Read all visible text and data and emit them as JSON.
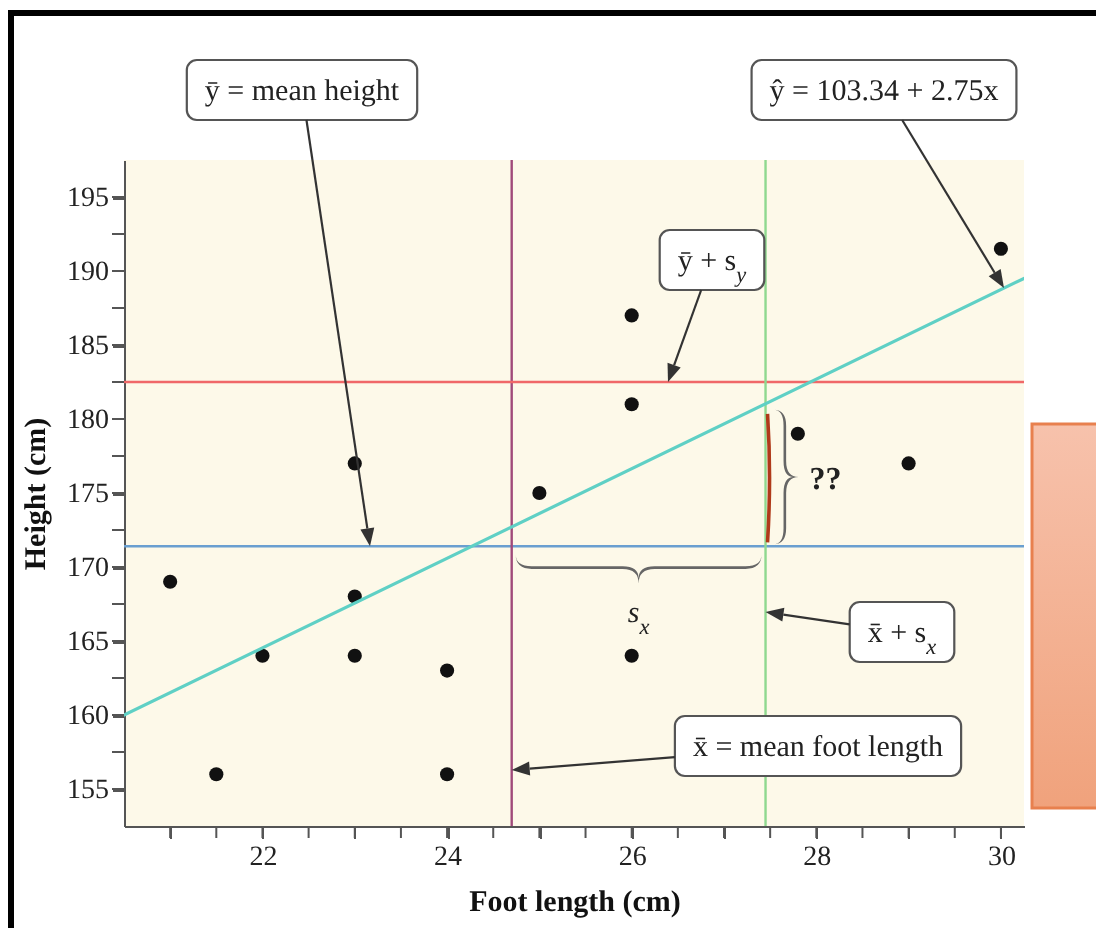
{
  "chart_data": {
    "type": "scatter",
    "xlabel": "Foot length (cm)",
    "ylabel": "Height (cm)",
    "xlim": [
      20.5,
      30.25
    ],
    "ylim": [
      152.5,
      197.5
    ],
    "xticks": [
      {
        "value": 21,
        "label": null
      },
      {
        "value": 21.5,
        "label": null
      },
      22,
      {
        "value": 22.5,
        "label": null
      },
      {
        "value": 23,
        "label": null
      },
      {
        "value": 23.5,
        "label": null
      },
      24,
      {
        "value": 24.5,
        "label": null
      },
      {
        "value": 25,
        "label": null
      },
      {
        "value": 25.5,
        "label": null
      },
      26,
      {
        "value": 26.5,
        "label": null
      },
      {
        "value": 27,
        "label": null
      },
      {
        "value": 27.5,
        "label": null
      },
      28,
      {
        "value": 28.5,
        "label": null
      },
      {
        "value": 29,
        "label": null
      },
      {
        "value": 29.5,
        "label": null
      },
      30
    ],
    "yticks": [
      155,
      {
        "value": 157.5,
        "label": null
      },
      160,
      {
        "value": 162.5,
        "label": null
      },
      165,
      {
        "value": 167.5,
        "label": null
      },
      170,
      {
        "value": 172.5,
        "label": null
      },
      175,
      {
        "value": 177.5,
        "label": null
      },
      180,
      {
        "value": 182.5,
        "label": null
      },
      185,
      {
        "value": 187.5,
        "label": null
      },
      190,
      {
        "value": 192.5,
        "label": null
      },
      195
    ],
    "series": [
      {
        "marker": "circle",
        "x": [
          21,
          21.5,
          22,
          23,
          23,
          23,
          24,
          24,
          25,
          26,
          26,
          26,
          27.8,
          29,
          30
        ],
        "values": [
          169,
          156,
          164,
          177,
          168,
          164,
          163,
          156,
          175,
          187,
          181,
          164,
          179,
          177,
          191.5
        ],
        "color": "#111111"
      },
      {
        "type": "line",
        "x": [
          20.5,
          30.25
        ],
        "values": [
          160,
          189.5
        ],
        "color": "#5fd0c5",
        "line_style": "solid"
      }
    ],
    "ref_lines": [
      {
        "axis": "y",
        "value": 171.4,
        "label": "ȳ = mean height",
        "color": "#6a9fd0"
      },
      {
        "axis": "x",
        "value": 24.7,
        "label": "x̄ = mean foot length",
        "color": "#a04a7a"
      },
      {
        "axis": "y",
        "value": 182.5,
        "label": "ȳ + s$_{y}$",
        "color": "#f06868"
      },
      {
        "axis": "x",
        "value": 27.45,
        "label": "x̄ + s$_{x}$",
        "color": "#8fd88f"
      }
    ],
    "annotations": [
      "ŷ = 103.34 + 2.75x",
      "??",
      "s$_{x}$"
    ]
  }
}
